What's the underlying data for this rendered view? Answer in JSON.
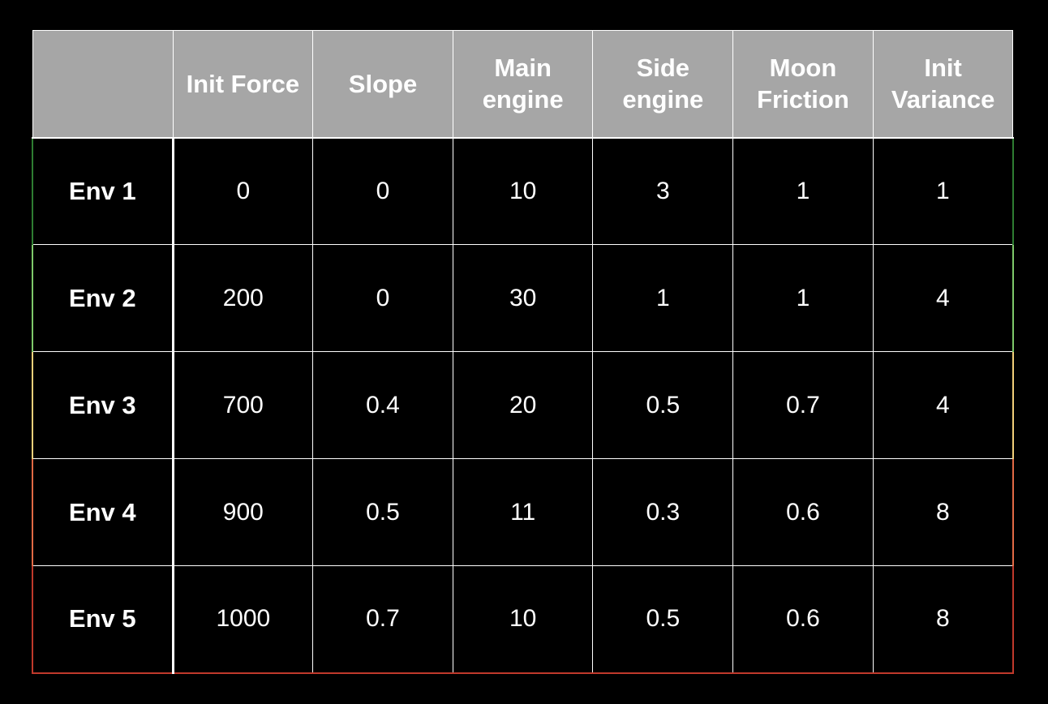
{
  "chart_data": {
    "type": "table",
    "columns": [
      "",
      "Init Force",
      "Slope",
      "Main engine",
      "Side engine",
      "Moon Friction",
      "Init Variance"
    ],
    "header_lines": [
      [
        ""
      ],
      [
        "Init Force"
      ],
      [
        "Slope"
      ],
      [
        "Main",
        "engine"
      ],
      [
        "Side",
        "engine"
      ],
      [
        "Moon",
        "Friction"
      ],
      [
        "Init",
        "Variance"
      ]
    ],
    "rows": [
      {
        "label": "Env 1",
        "values": [
          "0",
          "0",
          "10",
          "3",
          "1",
          "1"
        ],
        "edge_color": "#2e7d32"
      },
      {
        "label": "Env 2",
        "values": [
          "200",
          "0",
          "30",
          "1",
          "1",
          "4"
        ],
        "edge_color": "#7ec96a"
      },
      {
        "label": "Env 3",
        "values": [
          "700",
          "0.4",
          "20",
          "0.5",
          "0.7",
          "4"
        ],
        "edge_color": "#f2d07a"
      },
      {
        "label": "Env 4",
        "values": [
          "900",
          "0.5",
          "11",
          "0.3",
          "0.6",
          "8"
        ],
        "edge_color": "#e26a45"
      },
      {
        "label": "Env 5",
        "values": [
          "1000",
          "0.7",
          "10",
          "0.5",
          "0.6",
          "8"
        ],
        "edge_color": "#c0392b"
      }
    ]
  },
  "colors": {
    "background": "#000000",
    "header_fill": "#a6a6a6",
    "grid": "#ffffff",
    "text": "#ffffff"
  }
}
